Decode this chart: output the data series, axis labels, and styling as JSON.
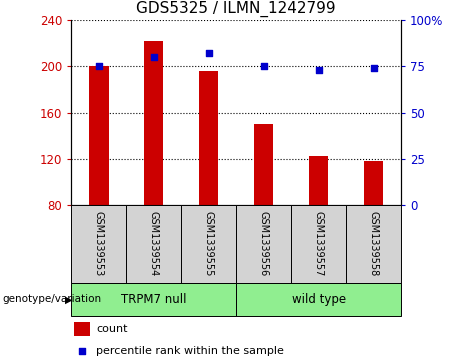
{
  "title": "GDS5325 / ILMN_1242799",
  "samples": [
    "GSM1339553",
    "GSM1339554",
    "GSM1339555",
    "GSM1339556",
    "GSM1339557",
    "GSM1339558"
  ],
  "counts": [
    200,
    222,
    196,
    150,
    122,
    118
  ],
  "percentiles": [
    75,
    80,
    82,
    75,
    73,
    74
  ],
  "groups": [
    {
      "label": "TRPM7 null",
      "start": 0,
      "end": 3,
      "color": "#90EE90"
    },
    {
      "label": "wild type",
      "start": 3,
      "end": 6,
      "color": "#90EE90"
    }
  ],
  "ylim_left": [
    80,
    240
  ],
  "ylim_right": [
    0,
    100
  ],
  "yticks_left": [
    80,
    120,
    160,
    200,
    240
  ],
  "yticks_right": [
    0,
    25,
    50,
    75,
    100
  ],
  "bar_color": "#CC0000",
  "dot_color": "#0000CC",
  "plot_bg": "#ffffff",
  "label_box_color": "#d3d3d3",
  "group_box_color": "#90EE90",
  "title_fontsize": 11
}
